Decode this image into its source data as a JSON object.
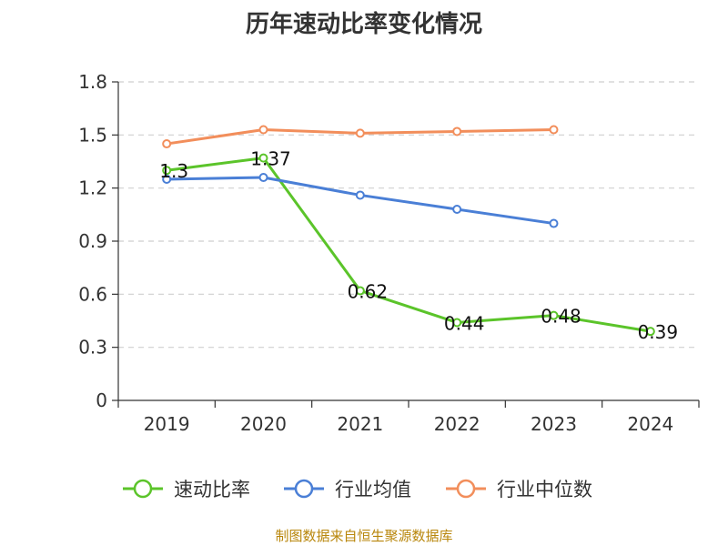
{
  "chart_data": {
    "type": "line",
    "title": "历年速动比率变化情况",
    "xlabel": "",
    "ylabel": "",
    "categories": [
      "2019",
      "2020",
      "2021",
      "2022",
      "2023",
      "2024"
    ],
    "ylim": [
      0,
      1.8
    ],
    "yticks": [
      "0",
      "0.3",
      "0.6",
      "0.9",
      "1.2",
      "1.5",
      "1.8"
    ],
    "grid": true,
    "legend_position": "bottom",
    "series": [
      {
        "name": "速动比率",
        "color": "#5bc42a",
        "values": [
          1.3,
          1.37,
          0.62,
          0.44,
          0.48,
          0.39
        ],
        "labels": [
          "1.3",
          "1.37",
          "0.62",
          "0.44",
          "0.48",
          "0.39"
        ],
        "show_labels": true
      },
      {
        "name": "行业均值",
        "color": "#4a7fd6",
        "values": [
          1.25,
          1.26,
          1.16,
          1.08,
          1.0,
          null
        ],
        "show_labels": false
      },
      {
        "name": "行业中位数",
        "color": "#f28e5b",
        "values": [
          1.45,
          1.53,
          1.51,
          1.52,
          1.53,
          null
        ],
        "show_labels": false
      }
    ]
  },
  "footer": {
    "source": "制图数据来自恒生聚源数据库"
  }
}
